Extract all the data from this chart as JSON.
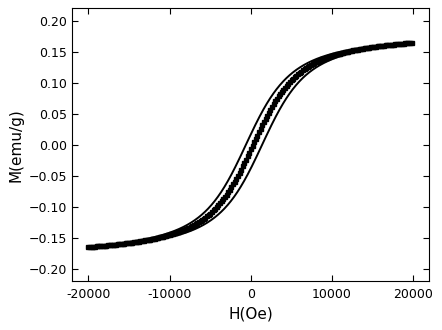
{
  "xlabel": "H(Oe)",
  "ylabel": "M(emu/g)",
  "xlim": [
    -22000,
    22000
  ],
  "ylim": [
    -0.22,
    0.22
  ],
  "xticks": [
    -20000,
    -10000,
    0,
    10000,
    20000
  ],
  "yticks": [
    -0.2,
    -0.15,
    -0.1,
    -0.05,
    0.0,
    0.05,
    0.1,
    0.15,
    0.2
  ],
  "Ms": 0.185,
  "Hc1": 600,
  "Hc2": 1400,
  "Hc_mid": 950,
  "a_param": 2200,
  "background_color": "#ffffff",
  "line_color": "#000000",
  "figsize": [
    4.42,
    3.3
  ],
  "dpi": 100
}
